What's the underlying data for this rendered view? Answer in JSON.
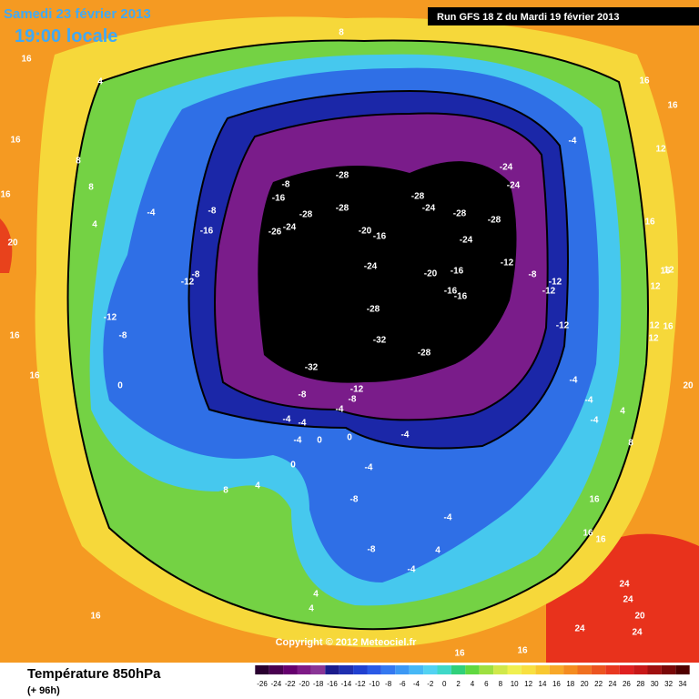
{
  "header": {
    "date": "Samedi 23 février 2013",
    "time": "19:00 locale",
    "run": "Run GFS 18 Z du Mardi 19 février 2013"
  },
  "copyright": "Copyright © 2012 Meteociel.fr",
  "footer": {
    "title": "Température 850hPa",
    "lead": "(+ 96h)"
  },
  "scale": {
    "labels": [
      -26,
      -24,
      -22,
      -20,
      -18,
      -16,
      -14,
      -12,
      -10,
      -8,
      -6,
      -4,
      -2,
      0,
      2,
      4,
      6,
      8,
      10,
      12,
      14,
      16,
      18,
      20,
      22,
      24,
      26,
      28,
      30,
      32,
      34
    ],
    "colors": [
      "#2a0030",
      "#4a0050",
      "#66006e",
      "#7e1a86",
      "#8a3596",
      "#1c1c8c",
      "#1f2fb0",
      "#2040d0",
      "#2a5ae6",
      "#3478f0",
      "#3c98f4",
      "#46b8f6",
      "#52d2f2",
      "#3fd8c8",
      "#30d07a",
      "#60d840",
      "#9ee040",
      "#d0e84a",
      "#f0f050",
      "#f8e040",
      "#f8c830",
      "#f8a828",
      "#f48c20",
      "#f07020",
      "#ec5420",
      "#e83820",
      "#e02020",
      "#c81818",
      "#a01010",
      "#7a0808",
      "#500000"
    ]
  },
  "map_labels": [
    -28,
    -28,
    -28,
    -24,
    -28,
    -28,
    -24,
    -24,
    -20,
    -16,
    -24,
    -24,
    -20,
    -16,
    -16,
    -16,
    -28,
    -32,
    -28,
    -32,
    -12,
    -8,
    -8,
    -12,
    -8,
    -12,
    -12,
    -12,
    -4,
    -8,
    -16,
    -28,
    -24,
    -26,
    -16,
    -8,
    -4,
    -12,
    -8,
    -12,
    -8,
    0,
    4,
    8,
    16,
    20,
    16,
    16,
    4,
    8,
    16,
    16,
    8,
    16,
    16,
    12,
    16,
    -4,
    -4,
    -4,
    4,
    8,
    16,
    16,
    16,
    24,
    24,
    20,
    24,
    24,
    16,
    16,
    16,
    8,
    4,
    0,
    0,
    0,
    -4,
    -4,
    -4,
    -4,
    -4,
    -4,
    -8,
    -8,
    -4,
    -4,
    4,
    4,
    4,
    20,
    16,
    12,
    12,
    16,
    12,
    12
  ]
}
